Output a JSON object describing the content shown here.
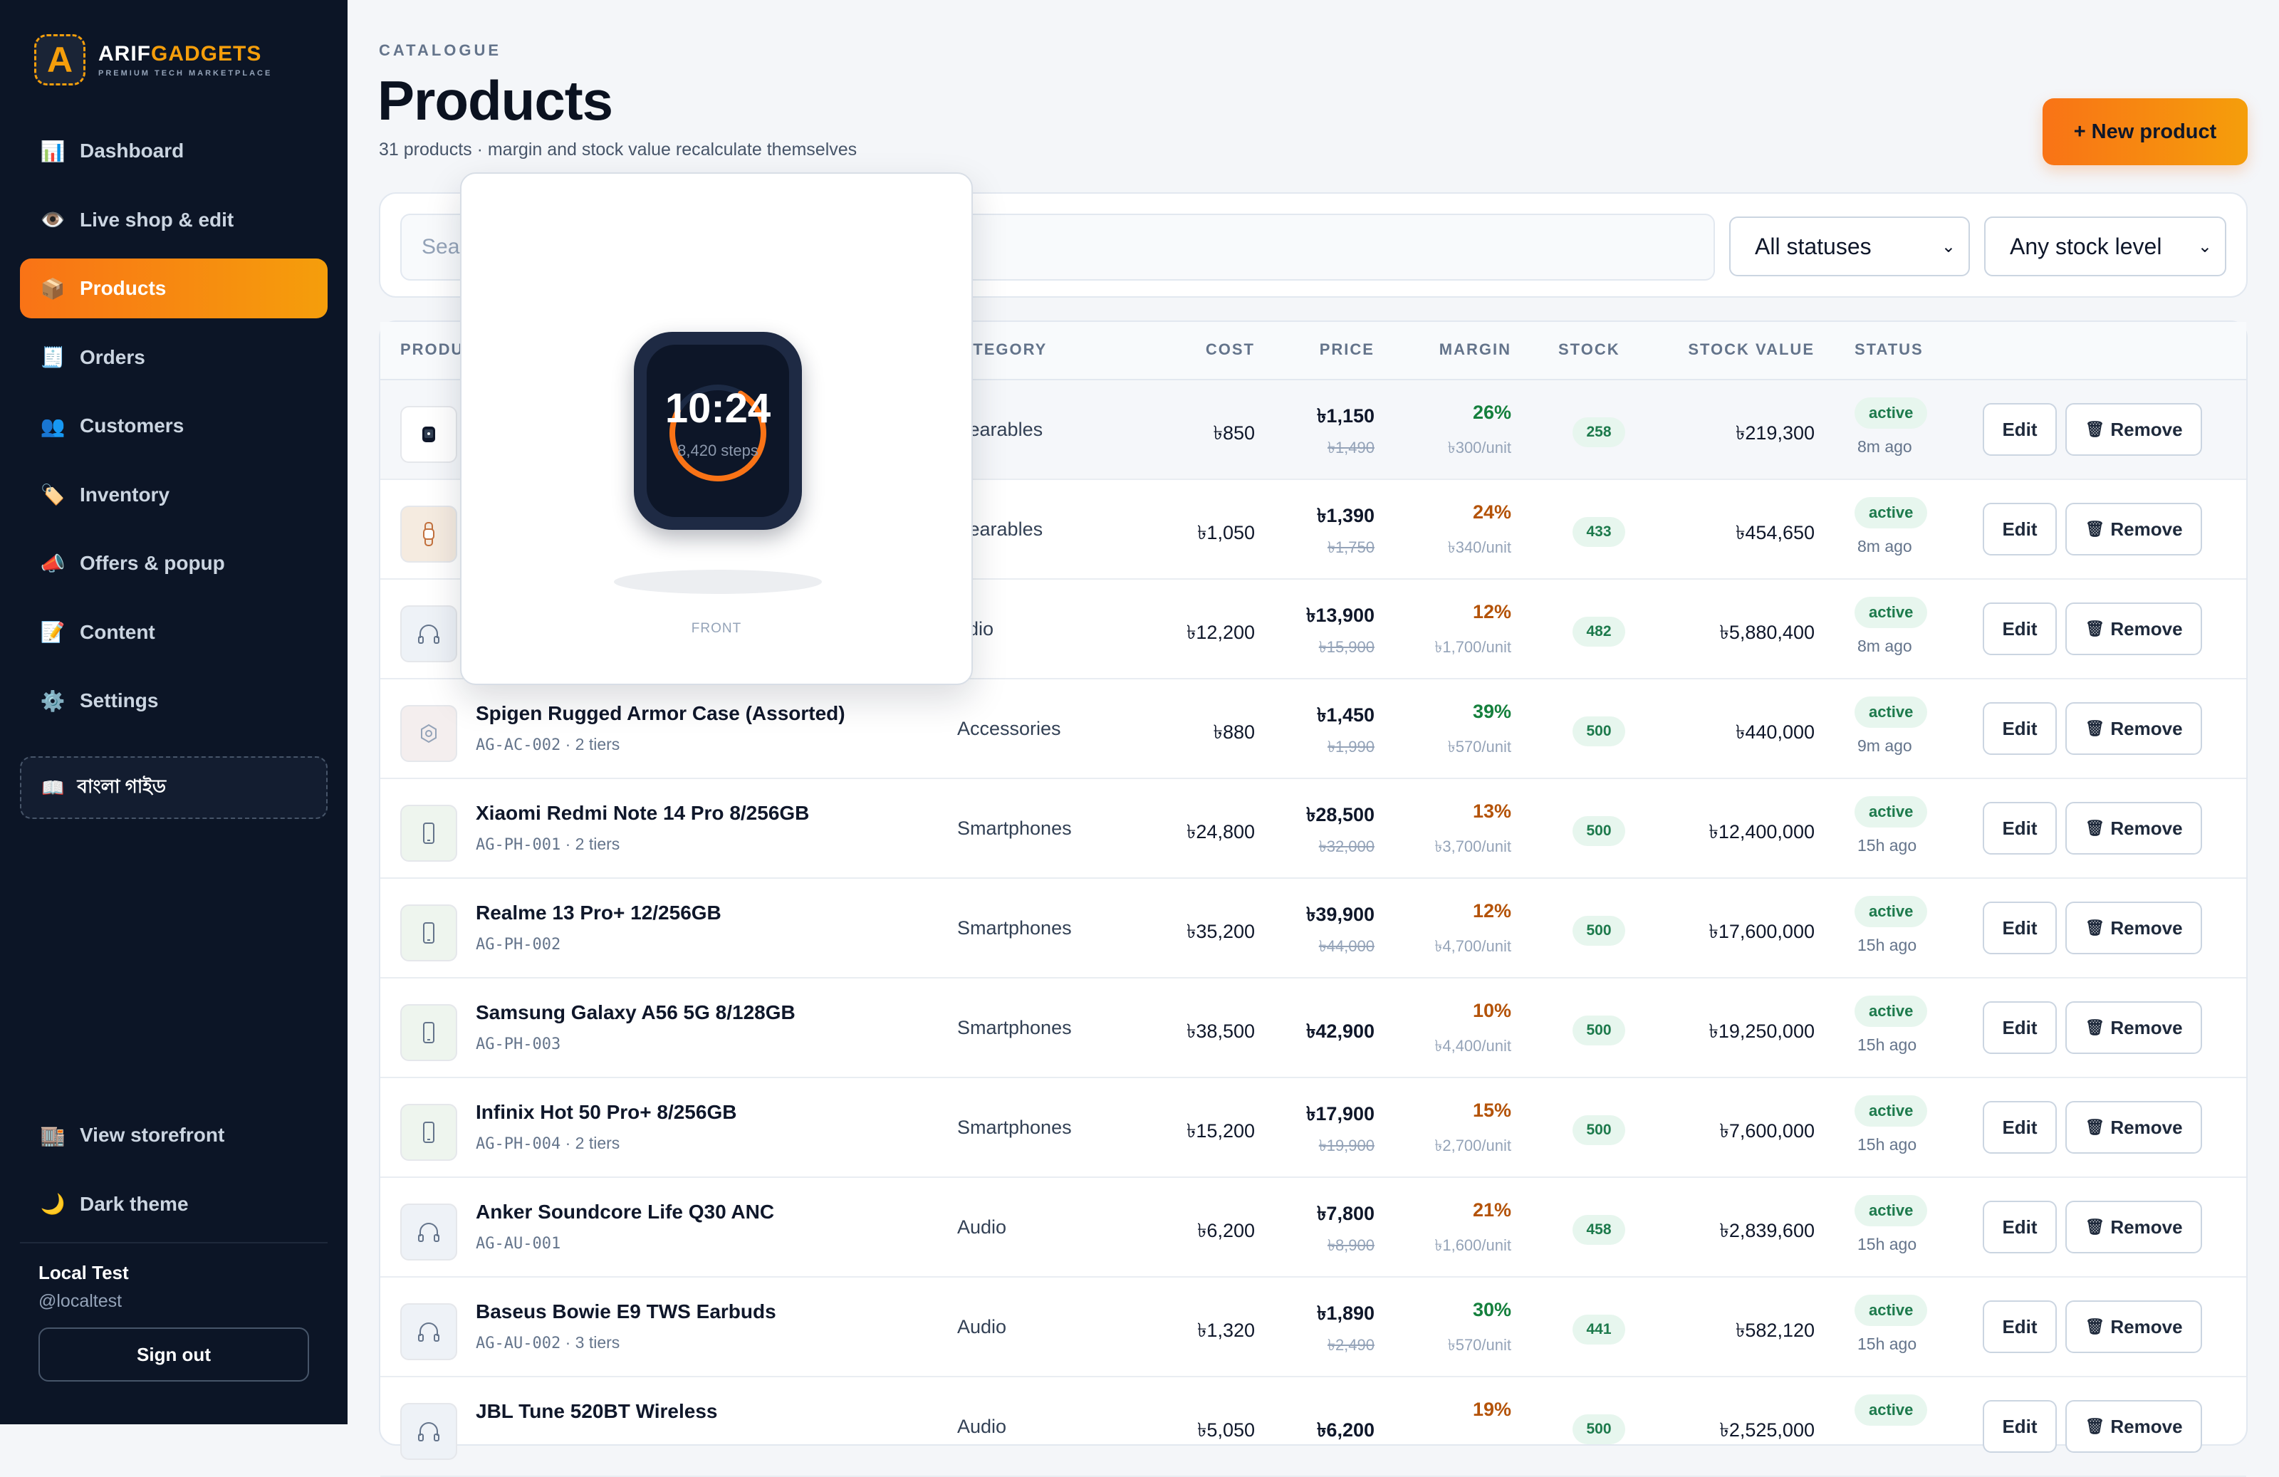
{
  "brand": {
    "logo_letter": "A",
    "name_a": "ARIF",
    "name_b": "GADGETS",
    "tagline": "PREMIUM TECH MARKETPLACE"
  },
  "nav": [
    {
      "icon": "📊",
      "label": "Dashboard"
    },
    {
      "icon": "👁️",
      "label": "Live shop & edit"
    },
    {
      "icon": "📦",
      "label": "Products",
      "active": true
    },
    {
      "icon": "🧾",
      "label": "Orders"
    },
    {
      "icon": "👥",
      "label": "Customers"
    },
    {
      "icon": "🏷️",
      "label": "Inventory"
    },
    {
      "icon": "📣",
      "label": "Offers & popup"
    },
    {
      "icon": "📝",
      "label": "Content"
    },
    {
      "icon": "⚙️",
      "label": "Settings"
    }
  ],
  "guide": {
    "icon": "📖",
    "label": "বাংলা গাইড"
  },
  "nav_bottom": [
    {
      "icon": "🏬",
      "label": "View storefront"
    },
    {
      "icon": "🌙",
      "label": "Dark theme"
    }
  ],
  "user": {
    "name": "Local Test",
    "handle": "@localtest",
    "signout": "Sign out"
  },
  "page": {
    "eyebrow": "CATALOGUE",
    "title": "Products",
    "subtitle": "31 products · margin and stock value recalculate themselves",
    "new_button": "+ New product"
  },
  "filters": {
    "search_placeholder": "Sea",
    "status_value": "All statuses",
    "stock_value": "Any stock level"
  },
  "table": {
    "headers": {
      "product": "PRODU",
      "category": "ATEGORY",
      "cost": "COST",
      "price": "PRICE",
      "margin": "MARGIN",
      "stock": "STOCK",
      "stock_value": "STOCK VALUE",
      "status": "STATUS"
    },
    "edit_label": "Edit",
    "remove_label": "Remove",
    "rows": [
      {
        "thumb": "watch",
        "name": "",
        "sku": "",
        "tiers": "",
        "category": "Vearables",
        "cost": "৳850",
        "price": "৳1,150",
        "old_price": "৳1,490",
        "margin": "26%",
        "margin_color": "#15803d",
        "margin_unit": "৳300/unit",
        "stock": "258",
        "stock_value": "৳219,300",
        "status": "active",
        "ago": "8m ago"
      },
      {
        "thumb": "band",
        "name": "",
        "sku": "",
        "tiers": "",
        "category": "Vearables",
        "cost": "৳1,050",
        "price": "৳1,390",
        "old_price": "৳1,750",
        "margin": "24%",
        "margin_color": "#b45309",
        "margin_unit": "৳340/unit",
        "stock": "433",
        "stock_value": "৳454,650",
        "status": "active",
        "ago": "8m ago"
      },
      {
        "thumb": "headphones",
        "name": "",
        "sku": "",
        "tiers": "",
        "category": "udio",
        "cost": "৳12,200",
        "price": "৳13,900",
        "old_price": "৳15,900",
        "margin": "12%",
        "margin_color": "#b45309",
        "margin_unit": "৳1,700/unit",
        "stock": "482",
        "stock_value": "৳5,880,400",
        "status": "active",
        "ago": "8m ago"
      },
      {
        "thumb": "case",
        "name": "Spigen Rugged Armor Case (Assorted)",
        "sku": "AG-AC-002",
        "tiers": " · 2 tiers",
        "category": "Accessories",
        "cost": "৳880",
        "price": "৳1,450",
        "old_price": "৳1,990",
        "margin": "39%",
        "margin_color": "#15803d",
        "margin_unit": "৳570/unit",
        "stock": "500",
        "stock_value": "৳440,000",
        "status": "active",
        "ago": "9m ago"
      },
      {
        "thumb": "phone",
        "name": "Xiaomi Redmi Note 14 Pro 8/256GB",
        "sku": "AG-PH-001",
        "tiers": " · 2 tiers",
        "category": "Smartphones",
        "cost": "৳24,800",
        "price": "৳28,500",
        "old_price": "৳32,000",
        "margin": "13%",
        "margin_color": "#b45309",
        "margin_unit": "৳3,700/unit",
        "stock": "500",
        "stock_value": "৳12,400,000",
        "status": "active",
        "ago": "15h ago"
      },
      {
        "thumb": "phone",
        "name": "Realme 13 Pro+ 12/256GB",
        "sku": "AG-PH-002",
        "tiers": "",
        "category": "Smartphones",
        "cost": "৳35,200",
        "price": "৳39,900",
        "old_price": "৳44,000",
        "margin": "12%",
        "margin_color": "#b45309",
        "margin_unit": "৳4,700/unit",
        "stock": "500",
        "stock_value": "৳17,600,000",
        "status": "active",
        "ago": "15h ago"
      },
      {
        "thumb": "phone",
        "name": "Samsung Galaxy A56 5G 8/128GB",
        "sku": "AG-PH-003",
        "tiers": "",
        "category": "Smartphones",
        "cost": "৳38,500",
        "price": "৳42,900",
        "old_price": "",
        "margin": "10%",
        "margin_color": "#b45309",
        "margin_unit": "৳4,400/unit",
        "stock": "500",
        "stock_value": "৳19,250,000",
        "status": "active",
        "ago": "15h ago"
      },
      {
        "thumb": "phone",
        "name": "Infinix Hot 50 Pro+ 8/256GB",
        "sku": "AG-PH-004",
        "tiers": " · 2 tiers",
        "category": "Smartphones",
        "cost": "৳15,200",
        "price": "৳17,900",
        "old_price": "৳19,900",
        "margin": "15%",
        "margin_color": "#b45309",
        "margin_unit": "৳2,700/unit",
        "stock": "500",
        "stock_value": "৳7,600,000",
        "status": "active",
        "ago": "15h ago"
      },
      {
        "thumb": "headphones",
        "name": "Anker Soundcore Life Q30 ANC",
        "sku": "AG-AU-001",
        "tiers": "",
        "category": "Audio",
        "cost": "৳6,200",
        "price": "৳7,800",
        "old_price": "৳8,900",
        "margin": "21%",
        "margin_color": "#b45309",
        "margin_unit": "৳1,600/unit",
        "stock": "458",
        "stock_value": "৳2,839,600",
        "status": "active",
        "ago": "15h ago"
      },
      {
        "thumb": "headphones",
        "name": "Baseus Bowie E9 TWS Earbuds",
        "sku": "AG-AU-002",
        "tiers": " · 3 tiers",
        "category": "Audio",
        "cost": "৳1,320",
        "price": "৳1,890",
        "old_price": "৳2,490",
        "margin": "30%",
        "margin_color": "#15803d",
        "margin_unit": "৳570/unit",
        "stock": "441",
        "stock_value": "৳582,120",
        "status": "active",
        "ago": "15h ago"
      },
      {
        "thumb": "headphones",
        "name": "JBL Tune 520BT Wireless",
        "sku": "",
        "tiers": "",
        "category": "Audio",
        "cost": "৳5,050",
        "price": "৳6,200",
        "old_price": "",
        "margin": "19%",
        "margin_color": "#b45309",
        "margin_unit": "",
        "stock": "500",
        "stock_value": "৳2,525,000",
        "status": "active",
        "ago": ""
      }
    ]
  },
  "preview": {
    "time": "10:24",
    "steps": "8,420 steps",
    "caption": "FRONT"
  },
  "colors": {
    "accent_from": "#f97316",
    "accent_to": "#f59e0b",
    "sidebar_bg": "#0c1526",
    "active_green": "#1d7a4c"
  }
}
